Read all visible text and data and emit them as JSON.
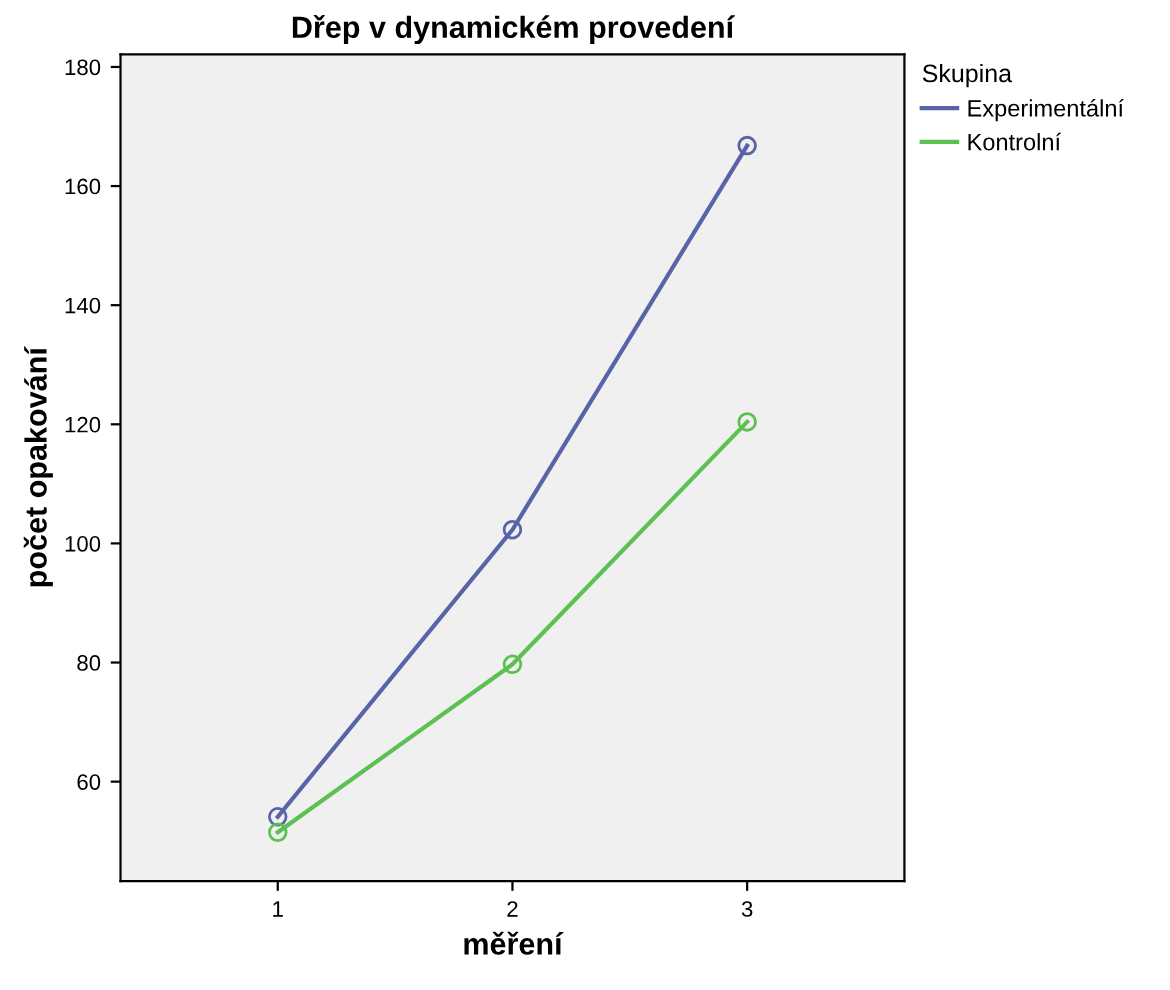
{
  "chart_data": {
    "type": "line",
    "title": "Dřep v dynamickém provedení",
    "xlabel": "měření",
    "ylabel": "počet opakování",
    "legend_title": "Skupina",
    "legend": "right",
    "x": [
      1,
      2,
      3
    ],
    "xlim": [
      0.33,
      3.67
    ],
    "xticks": [
      1,
      2,
      3
    ],
    "ylim": [
      43.3,
      182.1
    ],
    "yticks": [
      60,
      80,
      100,
      120,
      140,
      160,
      180
    ],
    "grid": false,
    "marker": "circle",
    "line_style": "solid",
    "series": [
      {
        "name": "Experimentální",
        "color": "#5964a8",
        "values": [
          54.1,
          102.3,
          166.8
        ]
      },
      {
        "name": "Kontrolní",
        "color": "#5cc052",
        "values": [
          51.5,
          79.7,
          120.4
        ]
      }
    ]
  }
}
